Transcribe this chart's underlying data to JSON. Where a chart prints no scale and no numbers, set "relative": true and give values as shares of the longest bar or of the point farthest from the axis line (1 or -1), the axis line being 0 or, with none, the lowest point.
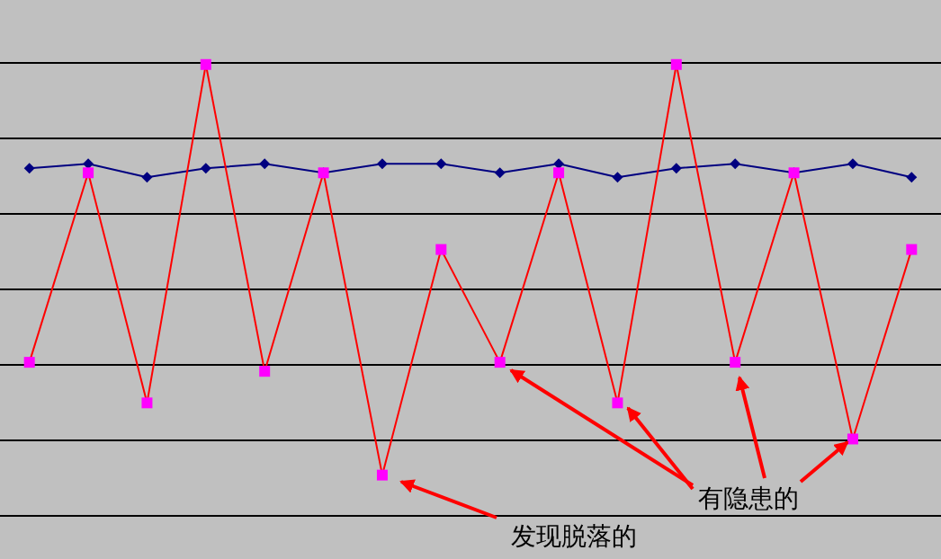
{
  "chart_data": {
    "type": "line",
    "relative": true,
    "categories": [
      null,
      null,
      null,
      null,
      null,
      null,
      null,
      null,
      null,
      null,
      null,
      null,
      null,
      null,
      null,
      null
    ],
    "series": [
      {
        "color": "#000080",
        "marker": "diamond",
        "values": [
          0.77,
          0.78,
          0.75,
          0.77,
          0.78,
          0.76,
          0.78,
          0.78,
          0.76,
          0.78,
          0.75,
          0.77,
          0.78,
          0.76,
          0.78,
          0.75
        ]
      },
      {
        "color": "#ff0000",
        "marker": "square",
        "colors": [
          "#ff00ff",
          "#ff00ff",
          "#ff00ff",
          "#ff00ff",
          "#ff00ff",
          "#ff00ff",
          "#ff00ff",
          "#ff00ff",
          "#ff00ff",
          "#ff00ff",
          "#ff00ff",
          "#ff00ff",
          "#ff00ff",
          "#ff00ff",
          "#ff00ff",
          "#ff00ff"
        ],
        "values": [
          0.34,
          0.76,
          0.25,
          1,
          0.32,
          0.76,
          0.09,
          0.59,
          0.34,
          0.76,
          0.25,
          1,
          0.34,
          0.76,
          0.17,
          0.59
        ]
      }
    ],
    "grid": "y",
    "tick_labels": false,
    "annotations": [
      "有隐患的",
      "发现脱落的"
    ]
  }
}
